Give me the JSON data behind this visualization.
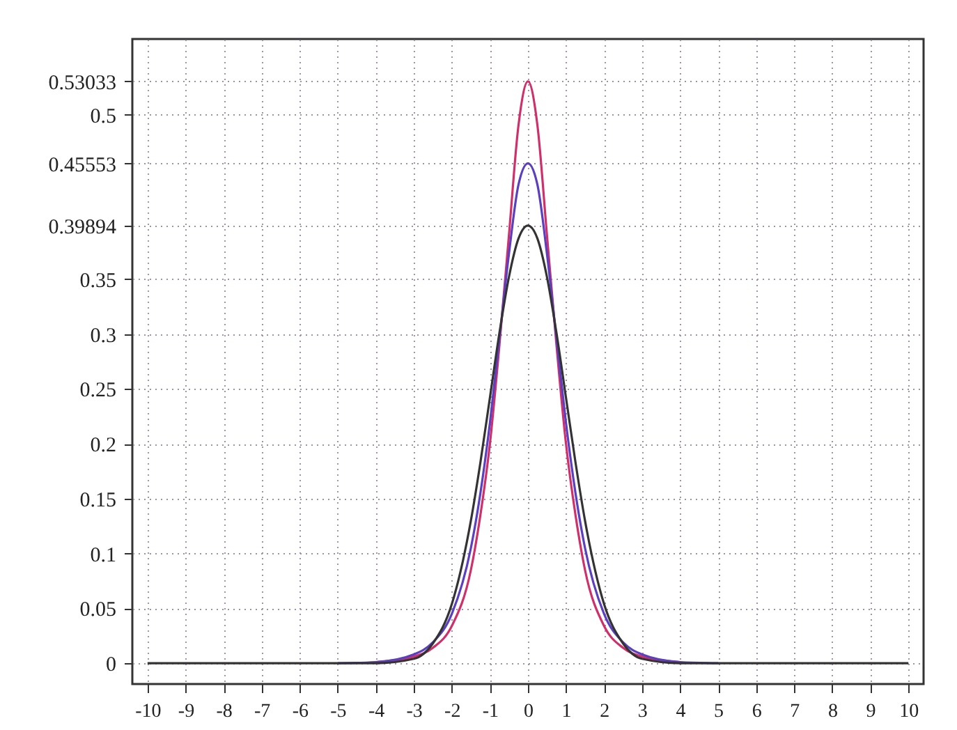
{
  "chart_data": {
    "type": "line",
    "x": [
      -10,
      -6,
      -5,
      -4,
      -3,
      -2.5,
      -2,
      -1.5,
      -1.25,
      -1,
      -0.75,
      -0.5,
      -0.25,
      0,
      0.25,
      0.5,
      0.75,
      1,
      1.25,
      1.5,
      2,
      2.5,
      3,
      4,
      5,
      6,
      10
    ],
    "series": [
      {
        "color": "#d0306a",
        "values": [
          null,
          null,
          null,
          0.001,
          0.006,
          0.014,
          0.034,
          0.085,
          0.135,
          0.2,
          0.29,
          0.39,
          0.49,
          0.53033,
          0.49,
          0.39,
          0.29,
          0.2,
          0.135,
          0.085,
          0.034,
          0.014,
          0.006,
          0.001,
          null,
          null,
          null
        ]
      },
      {
        "color": "#5a3fc0",
        "values": [
          null,
          null,
          0,
          0.001,
          0.008,
          0.019,
          0.045,
          0.105,
          0.155,
          0.219,
          0.296,
          0.373,
          0.436,
          0.45553,
          0.436,
          0.373,
          0.296,
          0.219,
          0.155,
          0.105,
          0.045,
          0.019,
          0.008,
          0.001,
          0,
          null,
          null
        ]
      },
      {
        "color": "#333333",
        "values": [
          0,
          0,
          0,
          0,
          0.004,
          0.018,
          0.054,
          0.13,
          0.183,
          0.242,
          0.301,
          0.352,
          0.387,
          0.39894,
          0.387,
          0.352,
          0.301,
          0.242,
          0.183,
          0.13,
          0.054,
          0.018,
          0.004,
          0,
          0,
          0,
          0
        ]
      }
    ],
    "xlim": [
      -10.4,
      10.4
    ],
    "xticks": [
      -10,
      -9,
      -8,
      -7,
      -6,
      -5,
      -4,
      -3,
      -2,
      -1,
      0,
      1,
      2,
      3,
      4,
      5,
      6,
      7,
      8,
      9,
      10
    ],
    "ylim": [
      -0.019,
      0.569
    ],
    "yticks": [
      0,
      0.05,
      0.1,
      0.15,
      0.2,
      0.25,
      0.3,
      0.35,
      0.39894,
      0.45553,
      0.5,
      0.53033
    ],
    "grid": true
  }
}
